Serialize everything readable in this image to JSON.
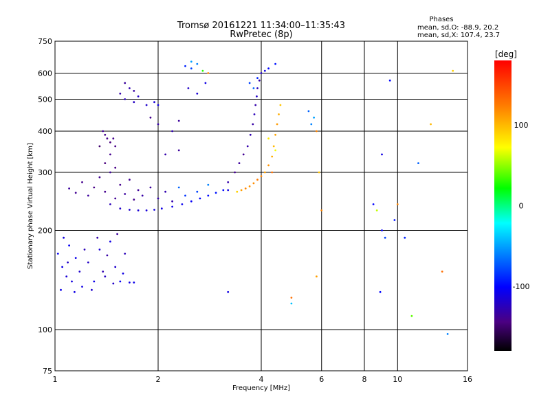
{
  "chart_data": {
    "type": "scatter",
    "title": "Tromsø 20161221 11:34:00–11:35:43",
    "subtitle": "RwPretec (8p)",
    "stats": {
      "heading": "Phases",
      "line_o": "mean, sd,O: -88.9, 20.2",
      "line_x": "mean, sd,X: 107.4, 23.7"
    },
    "xlabel": "Frequency [MHz]",
    "ylabel": "Stationary phase Virtual Height [km]",
    "xscale": "log",
    "yscale": "log",
    "xlim": [
      1,
      16
    ],
    "ylim": [
      75,
      750
    ],
    "xticks": [
      {
        "value": 1,
        "label": "1"
      },
      {
        "value": 2,
        "label": "2"
      },
      {
        "value": 4,
        "label": "4"
      },
      {
        "value": 6,
        "label": "6"
      },
      {
        "value": 8,
        "label": "8"
      },
      {
        "value": 10,
        "label": "10"
      },
      {
        "value": 16,
        "label": "16"
      }
    ],
    "yticks": [
      {
        "value": 75,
        "label": "75"
      },
      {
        "value": 100,
        "label": "100"
      },
      {
        "value": 200,
        "label": "200"
      },
      {
        "value": 300,
        "label": "300"
      },
      {
        "value": 400,
        "label": "400"
      },
      {
        "value": 500,
        "label": "500"
      },
      {
        "value": 600,
        "label": "600"
      },
      {
        "value": 750,
        "label": "750"
      }
    ],
    "xgrid": [
      2,
      4,
      6,
      8,
      10
    ],
    "ygrid": [
      100,
      200,
      300,
      400,
      500,
      600
    ],
    "colorbar": {
      "label": "[deg]",
      "range": [
        -180,
        180
      ],
      "ticks": [
        {
          "value": 100,
          "label": "100"
        },
        {
          "value": 0,
          "label": "0"
        },
        {
          "value": -100,
          "label": "-100"
        }
      ]
    },
    "points": [
      [
        1.02,
        170,
        -105
      ],
      [
        1.05,
        155,
        -110
      ],
      [
        1.08,
        145,
        -115
      ],
      [
        1.1,
        180,
        -105
      ],
      [
        1.12,
        140,
        -112
      ],
      [
        1.15,
        165,
        -108
      ],
      [
        1.18,
        150,
        -118
      ],
      [
        1.2,
        135,
        -110
      ],
      [
        1.25,
        160,
        -120
      ],
      [
        1.3,
        140,
        -108
      ],
      [
        1.35,
        175,
        -115
      ],
      [
        1.4,
        145,
        -122
      ],
      [
        1.45,
        185,
        -110
      ],
      [
        1.5,
        155,
        -118
      ],
      [
        1.55,
        140,
        -105
      ],
      [
        1.6,
        170,
        -125
      ],
      [
        1.65,
        139,
        -110
      ],
      [
        1.7,
        139,
        -108
      ],
      [
        1.04,
        132,
        -108
      ],
      [
        1.06,
        190,
        -112
      ],
      [
        1.09,
        160,
        -120
      ],
      [
        1.14,
        130,
        -110
      ],
      [
        1.22,
        175,
        -125
      ],
      [
        1.28,
        132,
        -118
      ],
      [
        1.33,
        190,
        -130
      ],
      [
        1.38,
        150,
        -128
      ],
      [
        1.42,
        168,
        -132
      ],
      [
        1.48,
        138,
        -120
      ],
      [
        1.52,
        195,
        -135
      ],
      [
        1.58,
        148,
        -110
      ],
      [
        1.1,
        268,
        -135
      ],
      [
        1.15,
        260,
        -138
      ],
      [
        1.2,
        280,
        -140
      ],
      [
        1.25,
        255,
        -135
      ],
      [
        1.3,
        270,
        -142
      ],
      [
        1.35,
        290,
        -138
      ],
      [
        1.4,
        262,
        -140
      ],
      [
        1.45,
        300,
        -136
      ],
      [
        1.5,
        250,
        -138
      ],
      [
        1.55,
        275,
        -140
      ],
      [
        1.6,
        258,
        -134
      ],
      [
        1.65,
        285,
        -138
      ],
      [
        1.7,
        248,
        -140
      ],
      [
        1.75,
        265,
        -136
      ],
      [
        1.8,
        255,
        -132
      ],
      [
        1.9,
        270,
        -135
      ],
      [
        2.0,
        250,
        -130
      ],
      [
        2.1,
        262,
        -128
      ],
      [
        2.2,
        245,
        -130
      ],
      [
        1.4,
        320,
        -145
      ],
      [
        1.45,
        340,
        -140
      ],
      [
        1.35,
        360,
        -150
      ],
      [
        1.5,
        310,
        -142
      ],
      [
        1.42,
        380,
        -140
      ],
      [
        1.45,
        240,
        -125
      ],
      [
        1.55,
        233,
        -120
      ],
      [
        1.65,
        231,
        -118
      ],
      [
        1.75,
        230,
        -116
      ],
      [
        1.85,
        230,
        -114
      ],
      [
        1.95,
        231,
        -112
      ],
      [
        2.05,
        233,
        -110
      ],
      [
        2.2,
        236,
        -108
      ],
      [
        2.35,
        240,
        -106
      ],
      [
        2.5,
        245,
        -104
      ],
      [
        2.65,
        250,
        -100
      ],
      [
        2.8,
        255,
        -98
      ],
      [
        2.95,
        260,
        -95
      ],
      [
        3.1,
        265,
        -98
      ],
      [
        2.4,
        255,
        -85
      ],
      [
        2.6,
        262,
        -80
      ],
      [
        2.3,
        270,
        -70
      ],
      [
        2.8,
        275,
        -60
      ],
      [
        3.2,
        265,
        -110
      ],
      [
        3.4,
        262,
        90
      ],
      [
        3.5,
        265,
        110
      ],
      [
        3.6,
        268,
        120
      ],
      [
        3.7,
        272,
        115
      ],
      [
        3.8,
        278,
        118
      ],
      [
        3.9,
        285,
        125
      ],
      [
        4.0,
        292,
        120
      ],
      [
        4.1,
        300,
        110
      ],
      [
        4.2,
        315,
        115
      ],
      [
        4.3,
        335,
        105
      ],
      [
        4.35,
        360,
        100
      ],
      [
        4.4,
        390,
        108
      ],
      [
        4.45,
        420,
        112
      ],
      [
        4.5,
        450,
        105
      ],
      [
        4.55,
        480,
        95
      ],
      [
        4.3,
        300,
        130
      ],
      [
        4.2,
        380,
        80
      ],
      [
        4.4,
        350,
        70
      ],
      [
        3.2,
        280,
        -130
      ],
      [
        3.35,
        300,
        -140
      ],
      [
        3.45,
        320,
        -135
      ],
      [
        3.55,
        340,
        -138
      ],
      [
        3.65,
        360,
        -130
      ],
      [
        3.72,
        390,
        -128
      ],
      [
        3.78,
        420,
        -132
      ],
      [
        3.82,
        450,
        -125
      ],
      [
        3.85,
        480,
        -130
      ],
      [
        3.88,
        510,
        -120
      ],
      [
        3.9,
        540,
        -125
      ],
      [
        3.95,
        570,
        -130
      ],
      [
        4.0,
        600,
        -120
      ],
      [
        4.1,
        610,
        -110
      ],
      [
        1.55,
        520,
        -130
      ],
      [
        1.6,
        500,
        -125
      ],
      [
        1.65,
        540,
        -128
      ],
      [
        1.7,
        490,
        -122
      ],
      [
        1.75,
        510,
        -120
      ],
      [
        1.85,
        480,
        -118
      ],
      [
        1.95,
        490,
        -115
      ],
      [
        2.0,
        480,
        -110
      ],
      [
        1.6,
        560,
        -135
      ],
      [
        1.7,
        530,
        -132
      ],
      [
        1.4,
        390,
        -140
      ],
      [
        1.45,
        370,
        -145
      ],
      [
        1.5,
        360,
        -142
      ],
      [
        1.38,
        400,
        -138
      ],
      [
        1.48,
        380,
        -140
      ],
      [
        2.4,
        630,
        -90
      ],
      [
        2.5,
        620,
        -80
      ],
      [
        2.6,
        640,
        -60
      ],
      [
        2.7,
        610,
        30
      ],
      [
        2.5,
        650,
        -50
      ],
      [
        2.8,
        600,
        120
      ],
      [
        2.45,
        540,
        -120
      ],
      [
        2.6,
        520,
        -115
      ],
      [
        2.75,
        560,
        -110
      ],
      [
        3.7,
        560,
        -80
      ],
      [
        3.8,
        540,
        -70
      ],
      [
        3.9,
        580,
        -90
      ],
      [
        4.2,
        620,
        -100
      ],
      [
        4.4,
        640,
        -95
      ],
      [
        2.3,
        350,
        -135
      ],
      [
        2.1,
        340,
        -130
      ],
      [
        2.2,
        400,
        -128
      ],
      [
        2.0,
        420,
        -132
      ],
      [
        2.3,
        430,
        -135
      ],
      [
        1.9,
        440,
        -140
      ],
      [
        5.6,
        420,
        -60
      ],
      [
        5.7,
        440,
        -50
      ],
      [
        5.8,
        400,
        120
      ],
      [
        5.5,
        460,
        -70
      ],
      [
        3.2,
        130,
        -110
      ],
      [
        4.9,
        125,
        130
      ],
      [
        4.9,
        120,
        -40
      ],
      [
        5.8,
        145,
        110
      ],
      [
        8.5,
        240,
        -100
      ],
      [
        8.7,
        230,
        60
      ],
      [
        8.9,
        130,
        -100
      ],
      [
        9.0,
        200,
        -105
      ],
      [
        9.2,
        190,
        -80
      ],
      [
        9.5,
        570,
        -100
      ],
      [
        10.5,
        190,
        -90
      ],
      [
        11.0,
        110,
        40
      ],
      [
        12.5,
        420,
        100
      ],
      [
        13.5,
        150,
        130
      ],
      [
        14.0,
        97,
        -60
      ],
      [
        14.5,
        610,
        90
      ],
      [
        10.0,
        240,
        120
      ],
      [
        9.0,
        340,
        -110
      ],
      [
        9.8,
        215,
        -95
      ],
      [
        11.5,
        320,
        -70
      ],
      [
        6.0,
        230,
        120
      ],
      [
        5.9,
        300,
        95
      ]
    ]
  }
}
